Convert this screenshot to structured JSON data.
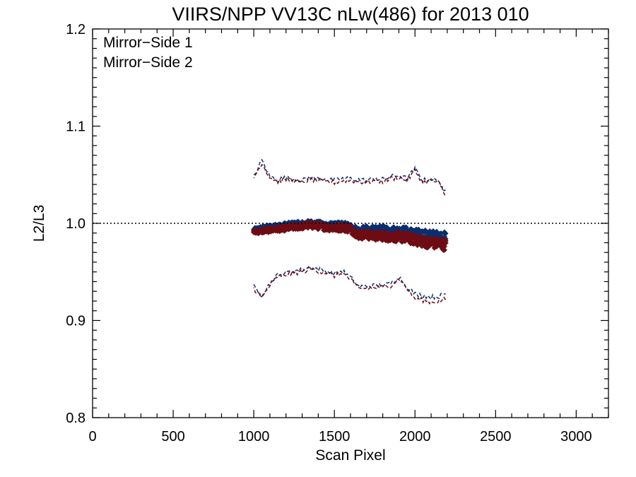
{
  "chart_data": {
    "type": "scatter",
    "title": "VIIRS/NPP VV13C nLw(486) for 2013 010",
    "xlabel": "Scan Pixel",
    "ylabel": "L2/L3",
    "xlim": [
      0,
      3200
    ],
    "ylim": [
      0.8,
      1.2
    ],
    "xticks": [
      0,
      500,
      1000,
      1500,
      2000,
      2500,
      3000
    ],
    "yticks": [
      0.8,
      0.9,
      1.0,
      1.1,
      1.2
    ],
    "xtick_labels": [
      "0",
      "500",
      "1000",
      "1500",
      "2000",
      "2500",
      "3000"
    ],
    "ytick_labels": [
      "0.8",
      "0.9",
      "1.0",
      "1.1",
      "1.2"
    ],
    "reference_line": 1.0,
    "legend_position": "top-left",
    "grid": false,
    "series": [
      {
        "name": "Mirror−Side 1",
        "color": "#0b2f6e",
        "x": [
          1000,
          1050,
          1100,
          1150,
          1200,
          1250,
          1300,
          1350,
          1400,
          1450,
          1500,
          1550,
          1600,
          1650,
          1700,
          1750,
          1800,
          1850,
          1900,
          1950,
          2000,
          2050,
          2100,
          2150,
          2190
        ],
        "mean": [
          0.993,
          0.995,
          0.996,
          0.997,
          0.998,
          0.999,
          0.999,
          1.0,
          0.999,
          0.998,
          0.997,
          0.998,
          0.996,
          0.992,
          0.993,
          0.992,
          0.993,
          0.992,
          0.992,
          0.991,
          0.989,
          0.988,
          0.987,
          0.986,
          0.985
        ],
        "upper": [
          1.048,
          1.065,
          1.048,
          1.045,
          1.047,
          1.046,
          1.044,
          1.047,
          1.046,
          1.045,
          1.044,
          1.046,
          1.046,
          1.045,
          1.044,
          1.046,
          1.045,
          1.048,
          1.049,
          1.046,
          1.056,
          1.044,
          1.046,
          1.043,
          1.032
        ],
        "lower": [
          0.935,
          0.926,
          0.938,
          0.947,
          0.949,
          0.951,
          0.952,
          0.955,
          0.953,
          0.951,
          0.948,
          0.951,
          0.944,
          0.935,
          0.935,
          0.936,
          0.936,
          0.938,
          0.945,
          0.935,
          0.927,
          0.926,
          0.924,
          0.925,
          0.927
        ]
      },
      {
        "name": "Mirror−Side 2",
        "color": "#6e0c14",
        "x": [
          1000,
          1050,
          1100,
          1150,
          1200,
          1250,
          1300,
          1350,
          1400,
          1450,
          1500,
          1550,
          1600,
          1650,
          1700,
          1750,
          1800,
          1850,
          1900,
          1950,
          2000,
          2050,
          2100,
          2150,
          2190
        ],
        "mean": [
          0.991,
          0.992,
          0.993,
          0.994,
          0.995,
          0.996,
          0.997,
          0.998,
          0.997,
          0.996,
          0.995,
          0.996,
          0.994,
          0.988,
          0.988,
          0.987,
          0.987,
          0.986,
          0.986,
          0.985,
          0.983,
          0.981,
          0.98,
          0.979,
          0.978
        ],
        "upper": [
          1.047,
          1.062,
          1.047,
          1.043,
          1.045,
          1.044,
          1.042,
          1.045,
          1.044,
          1.043,
          1.042,
          1.044,
          1.044,
          1.043,
          1.042,
          1.044,
          1.043,
          1.046,
          1.047,
          1.044,
          1.054,
          1.042,
          1.044,
          1.041,
          1.028
        ],
        "lower": [
          0.933,
          0.924,
          0.936,
          0.945,
          0.947,
          0.949,
          0.95,
          0.953,
          0.951,
          0.949,
          0.946,
          0.949,
          0.942,
          0.933,
          0.933,
          0.934,
          0.934,
          0.936,
          0.943,
          0.933,
          0.922,
          0.921,
          0.919,
          0.92,
          0.922
        ]
      }
    ]
  }
}
